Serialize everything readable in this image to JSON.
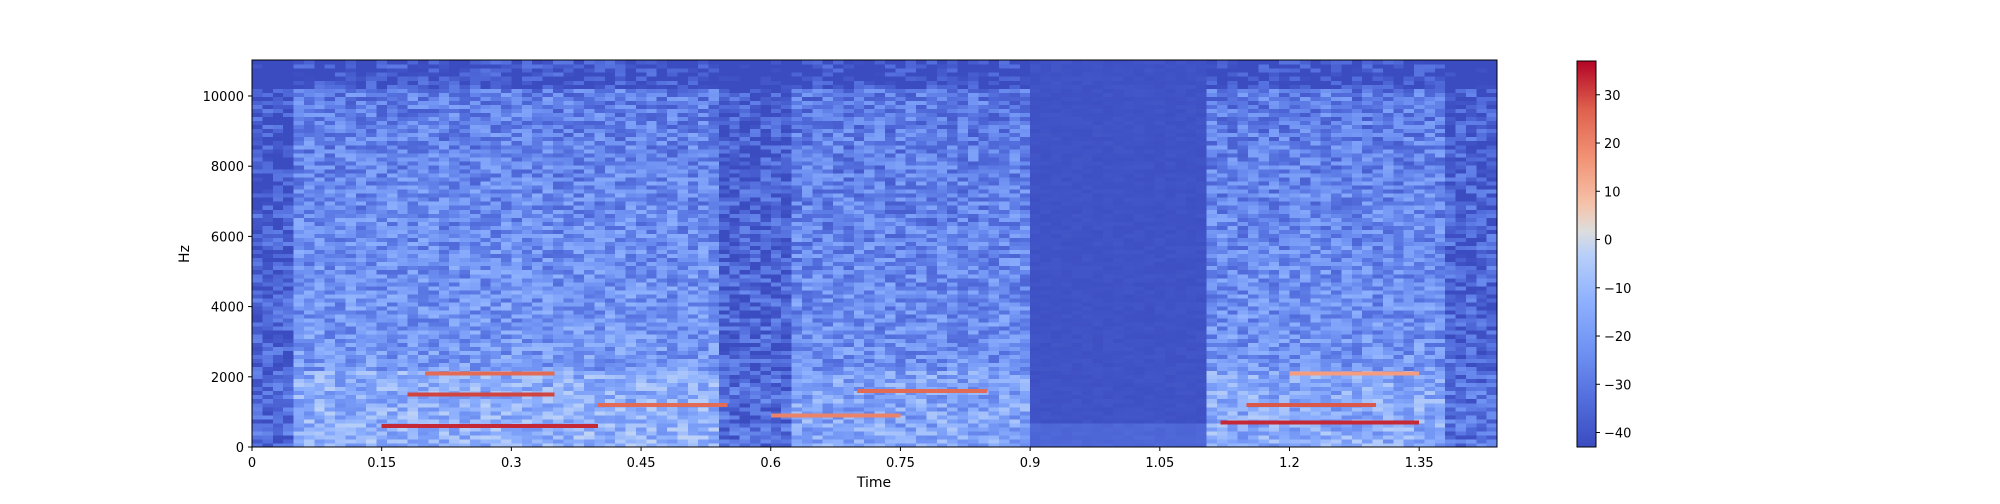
{
  "chart_data": {
    "type": "heatmap",
    "title": "",
    "xlabel": "Time",
    "ylabel": "Hz",
    "xlim": [
      0,
      1.44
    ],
    "ylim": [
      0,
      11025
    ],
    "x_ticks": [
      0,
      0.15,
      0.3,
      0.45,
      0.6,
      0.75,
      0.9,
      1.05,
      1.2,
      1.35
    ],
    "x_tick_labels": [
      "0",
      "0.15",
      "0.3",
      "0.45",
      "0.6",
      "0.75",
      "0.9",
      "1.05",
      "1.2",
      "1.35"
    ],
    "y_ticks": [
      0,
      2000,
      4000,
      6000,
      8000,
      10000
    ],
    "y_tick_labels": [
      "0",
      "2000",
      "4000",
      "6000",
      "8000",
      "10000"
    ],
    "colorbar": {
      "colormap": "coolwarm",
      "vmin": -43,
      "vmax": 37,
      "ticks": [
        -40,
        -30,
        -20,
        -10,
        0,
        10,
        20,
        30
      ],
      "tick_labels": [
        "−40",
        "−30",
        "−20",
        "−10",
        "0",
        "10",
        "20",
        "30"
      ]
    },
    "colors": {
      "low": "#3b4cc0",
      "mid": "#dddddd",
      "high": "#b40426"
    },
    "segments": [
      {
        "t_start": 0.0,
        "t_end": 0.05,
        "level": 0.25
      },
      {
        "t_start": 0.05,
        "t_end": 0.54,
        "level": 0.9
      },
      {
        "t_start": 0.54,
        "t_end": 0.63,
        "level": 0.3
      },
      {
        "t_start": 0.63,
        "t_end": 0.9,
        "level": 0.8
      },
      {
        "t_start": 0.9,
        "t_end": 1.1,
        "level": 0.05
      },
      {
        "t_start": 1.1,
        "t_end": 1.38,
        "level": 0.85
      },
      {
        "t_start": 1.38,
        "t_end": 1.44,
        "level": 0.35
      }
    ],
    "harmonic_bands": [
      {
        "t_start": 0.15,
        "t_end": 0.4,
        "hz": 600,
        "db": 33
      },
      {
        "t_start": 0.18,
        "t_end": 0.35,
        "hz": 1500,
        "db": 30
      },
      {
        "t_start": 0.2,
        "t_end": 0.35,
        "hz": 2100,
        "db": 25
      },
      {
        "t_start": 0.4,
        "t_end": 0.55,
        "hz": 1200,
        "db": 25
      },
      {
        "t_start": 0.6,
        "t_end": 0.75,
        "hz": 900,
        "db": 20
      },
      {
        "t_start": 0.7,
        "t_end": 0.85,
        "hz": 1600,
        "db": 25
      },
      {
        "t_start": 1.12,
        "t_end": 1.35,
        "hz": 700,
        "db": 33
      },
      {
        "t_start": 1.15,
        "t_end": 1.3,
        "hz": 1200,
        "db": 28
      },
      {
        "t_start": 1.2,
        "t_end": 1.35,
        "hz": 2100,
        "db": 15
      }
    ]
  }
}
